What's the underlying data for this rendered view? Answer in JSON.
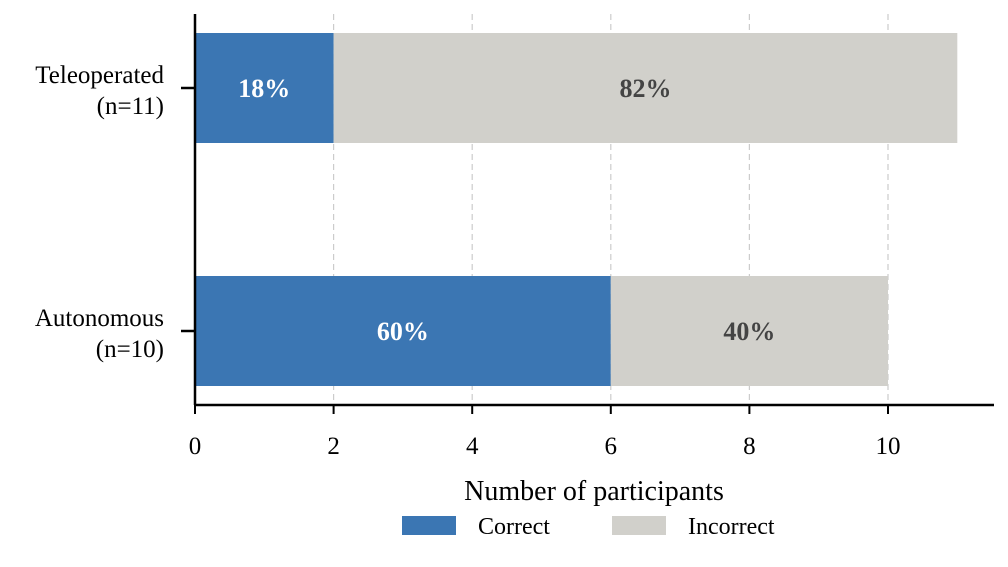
{
  "chart_data": {
    "type": "bar",
    "orientation": "horizontal",
    "stacked": true,
    "categories": [
      "Teleoperated\n(n=11)",
      "Autonomous\n(n=10)"
    ],
    "series": [
      {
        "name": "Correct",
        "values": [
          2,
          6
        ],
        "labels": [
          "18%",
          "60%"
        ],
        "color": "#3b76b3",
        "label_color": "#ffffff"
      },
      {
        "name": "Incorrect",
        "values": [
          9,
          4
        ],
        "labels": [
          "82%",
          "40%"
        ],
        "color": "#d1d0cb",
        "label_color": "#444444"
      }
    ],
    "xlabel": "Number of participants",
    "xlim": [
      0,
      11.5
    ],
    "xticks": [
      "0",
      "2",
      "4",
      "6",
      "8",
      "10"
    ],
    "grid": "vertical-dashed",
    "legend_position": "bottom-center"
  }
}
